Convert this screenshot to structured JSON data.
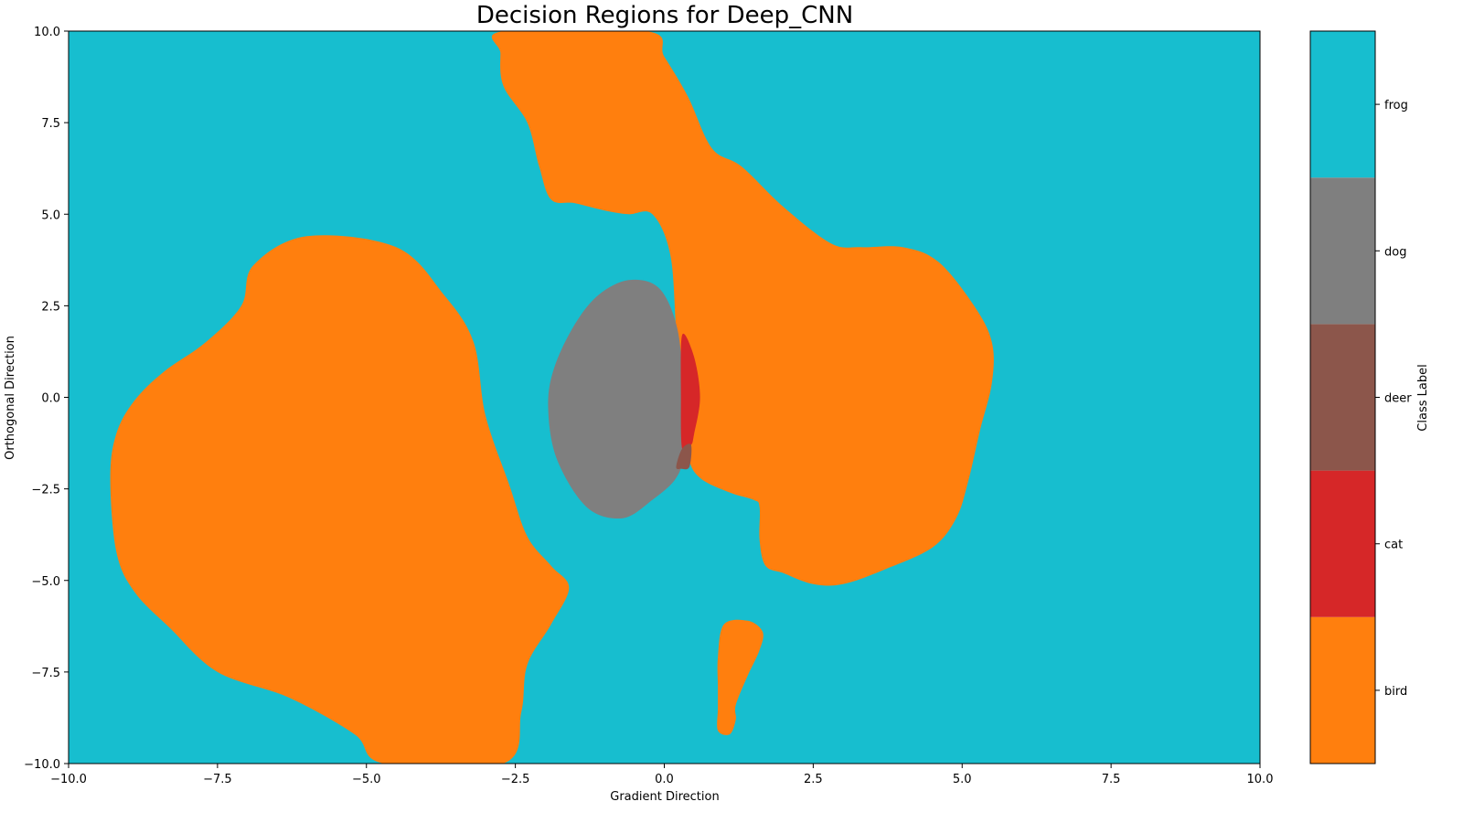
{
  "chart_data": {
    "type": "decision_regions",
    "title": "Decision Regions for Deep_CNN",
    "xlabel": "Gradient Direction",
    "ylabel": "Orthogonal Direction",
    "xlim": [
      -10,
      10
    ],
    "ylim": [
      -10,
      10
    ],
    "x_ticks": [
      -10,
      -7.5,
      -5,
      -2.5,
      0,
      2.5,
      5,
      7.5,
      10
    ],
    "y_ticks": [
      -10,
      -7.5,
      -5,
      -2.5,
      0,
      2.5,
      5,
      7.5,
      10
    ],
    "x_tick_labels": [
      "−10.0",
      "−7.5",
      "−5.0",
      "−2.5",
      "0.0",
      "2.5",
      "5.0",
      "7.5",
      "10.0"
    ],
    "y_tick_labels": [
      "−10.0",
      "−7.5",
      "−5.0",
      "−2.5",
      "0.0",
      "2.5",
      "5.0",
      "7.5",
      "10.0"
    ],
    "background_class": "frog",
    "colorbar": {
      "label": "Class Label",
      "classes": [
        {
          "name": "bird",
          "color": "#ff7f0e"
        },
        {
          "name": "cat",
          "color": "#d62728"
        },
        {
          "name": "deer",
          "color": "#8c564b"
        },
        {
          "name": "dog",
          "color": "#7f7f7f"
        },
        {
          "name": "frog",
          "color": "#17becf"
        }
      ]
    },
    "regions": [
      {
        "class": "bird",
        "points": [
          [
            -6,
            4.4
          ],
          [
            -4.5,
            4.1
          ],
          [
            -3.7,
            2.8
          ],
          [
            -3.2,
            1.5
          ],
          [
            -3,
            -0.5
          ],
          [
            -2.6,
            -2.4
          ],
          [
            -2.3,
            -3.8
          ],
          [
            -1.9,
            -4.6
          ],
          [
            -1.6,
            -5.2
          ],
          [
            -1.9,
            -6.2
          ],
          [
            -2.3,
            -7.3
          ],
          [
            -2.4,
            -8.6
          ],
          [
            -2.7,
            -10
          ],
          [
            -4.7,
            -10
          ],
          [
            -5.2,
            -9.2
          ],
          [
            -6.3,
            -8.2
          ],
          [
            -7.5,
            -7.5
          ],
          [
            -8.3,
            -6.3
          ],
          [
            -8.9,
            -5.3
          ],
          [
            -9.2,
            -4.2
          ],
          [
            -9.3,
            -2.2
          ],
          [
            -9.2,
            -1
          ],
          [
            -8.9,
            -0.1
          ],
          [
            -8.4,
            0.7
          ],
          [
            -7.7,
            1.5
          ],
          [
            -7.1,
            2.5
          ],
          [
            -6.9,
            3.6
          ]
        ]
      },
      {
        "class": "bird",
        "points": [
          [
            -2.7,
            10
          ],
          [
            -0.3,
            10
          ],
          [
            0,
            9.3
          ],
          [
            0.4,
            8.2
          ],
          [
            0.8,
            6.8
          ],
          [
            1.3,
            6.3
          ],
          [
            2,
            5.2
          ],
          [
            2.8,
            4.2
          ],
          [
            3.3,
            4.1
          ],
          [
            4,
            4.1
          ],
          [
            4.6,
            3.7
          ],
          [
            5.2,
            2.5
          ],
          [
            5.5,
            1.5
          ],
          [
            5.5,
            0.4
          ],
          [
            5.3,
            -0.9
          ],
          [
            5.1,
            -2.3
          ],
          [
            4.9,
            -3.3
          ],
          [
            4.5,
            -4.1
          ],
          [
            3.7,
            -4.7
          ],
          [
            3,
            -5.1
          ],
          [
            2.5,
            -5.1
          ],
          [
            2,
            -4.8
          ],
          [
            1.7,
            -4.6
          ],
          [
            1.6,
            -3.9
          ],
          [
            1.6,
            -3
          ],
          [
            1.5,
            -2.8
          ],
          [
            1.1,
            -2.6
          ],
          [
            0.6,
            -2.2
          ],
          [
            0.4,
            -1.6
          ],
          [
            0.3,
            -0.2
          ],
          [
            0.2,
            1.8
          ],
          [
            0.1,
            3.9
          ],
          [
            -0.2,
            5
          ],
          [
            -0.6,
            5
          ],
          [
            -1,
            5.1
          ],
          [
            -1.5,
            5.3
          ],
          [
            -1.9,
            5.4
          ],
          [
            -2.1,
            6.3
          ],
          [
            -2.3,
            7.5
          ],
          [
            -2.7,
            8.5
          ],
          [
            -2.75,
            9.4
          ]
        ]
      },
      {
        "class": "bird",
        "points": [
          [
            1,
            -6.2
          ],
          [
            1.4,
            -6.1
          ],
          [
            1.65,
            -6.4
          ],
          [
            1.6,
            -6.9
          ],
          [
            1.4,
            -7.6
          ],
          [
            1.2,
            -8.4
          ],
          [
            1.2,
            -8.8
          ],
          [
            1.1,
            -9.2
          ],
          [
            0.9,
            -9.1
          ],
          [
            0.9,
            -8.5
          ],
          [
            0.9,
            -7.9
          ],
          [
            0.9,
            -7.1
          ]
        ]
      },
      {
        "class": "dog",
        "points": [
          [
            -0.6,
            3.2
          ],
          [
            -0.1,
            3
          ],
          [
            0.2,
            2
          ],
          [
            0.3,
            0.6
          ],
          [
            0.3,
            -1.5
          ],
          [
            0.2,
            -2.2
          ],
          [
            -0.2,
            -2.8
          ],
          [
            -0.7,
            -3.3
          ],
          [
            -1.3,
            -3
          ],
          [
            -1.8,
            -1.7
          ],
          [
            -1.95,
            -0.3
          ],
          [
            -1.85,
            0.8
          ],
          [
            -1.5,
            2
          ],
          [
            -1.1,
            2.8
          ]
        ]
      },
      {
        "class": "cat",
        "points": [
          [
            0.3,
            1.7
          ],
          [
            0.5,
            1.1
          ],
          [
            0.6,
            0
          ],
          [
            0.5,
            -1
          ],
          [
            0.45,
            -1.3
          ],
          [
            0.3,
            -1.4
          ],
          [
            0.28,
            0
          ]
        ]
      },
      {
        "class": "deer",
        "points": [
          [
            0.3,
            -1.4
          ],
          [
            0.45,
            -1.3
          ],
          [
            0.42,
            -1.9
          ],
          [
            0.28,
            -1.95
          ],
          [
            0.2,
            -1.9
          ]
        ]
      }
    ]
  }
}
